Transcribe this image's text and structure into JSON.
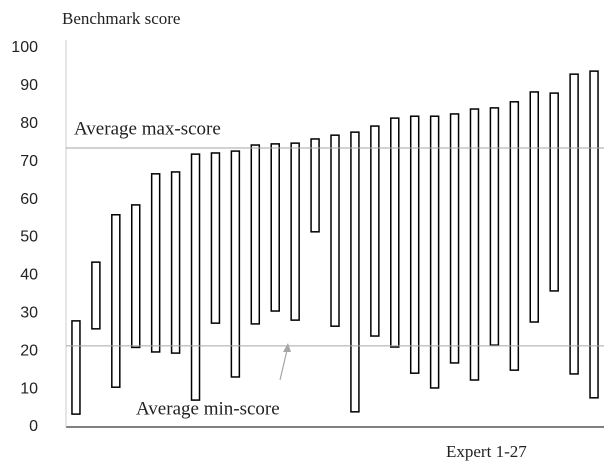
{
  "chart_data": {
    "type": "range_bar",
    "title": "Benchmark score",
    "x_label": "Expert 1-27",
    "low": [
      3.4,
      25.9,
      10.5,
      21,
      19.8,
      19.5,
      7.1,
      27.4,
      13.2,
      27.2,
      30.6,
      28.2,
      51.5,
      26.6,
      4,
      24,
      21.1,
      14.2,
      10.3,
      16.9,
      12.4,
      21.6,
      15,
      27.7,
      35.9,
      14,
      7.7
    ],
    "high": [
      28,
      43.5,
      56,
      58.6,
      66.8,
      67.3,
      72,
      72.3,
      72.8,
      74.4,
      74.7,
      74.9,
      76,
      77,
      77.8,
      79.4,
      81.5,
      82,
      82,
      82.6,
      83.9,
      84.2,
      85.8,
      88.4,
      88.1,
      93.1,
      93.9
    ],
    "bar_color": "#ffffff",
    "edge_color": "#000000",
    "reference_lines": [
      {
        "label": "Average max-score",
        "value": 73.6,
        "color": "#a6a6a6"
      },
      {
        "label": "Average min-score",
        "value": 21.4,
        "color": "#a6a6a6"
      }
    ],
    "ylim": [
      0,
      100
    ],
    "yticks": [
      0,
      10,
      20,
      30,
      40,
      50,
      60,
      70,
      80,
      90,
      100
    ],
    "grid": false
  }
}
